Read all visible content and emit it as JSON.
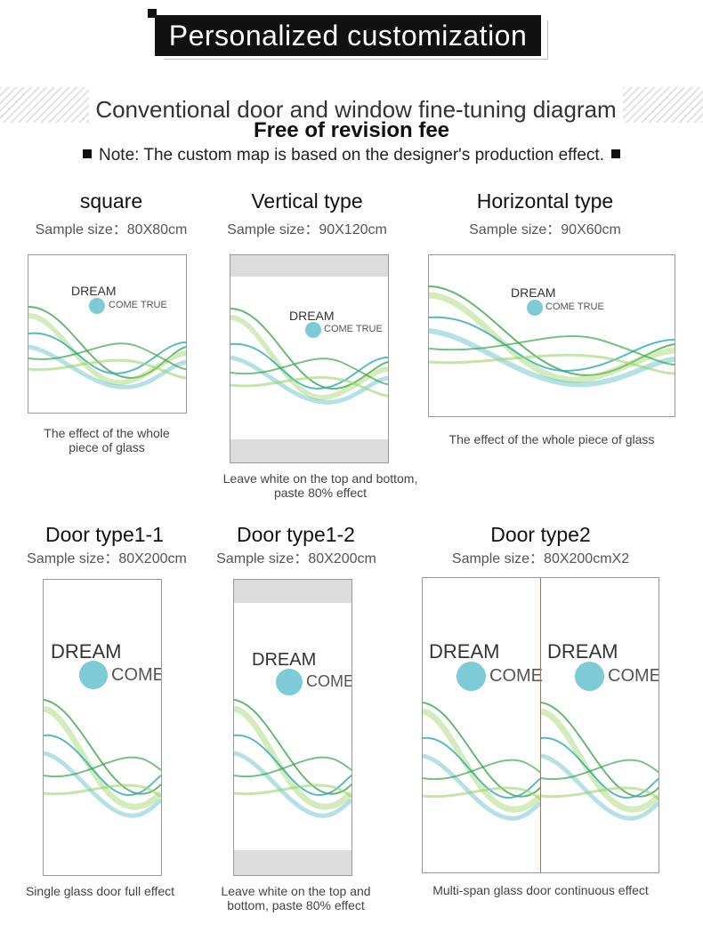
{
  "header": {
    "title": "Personalized customization",
    "subtitle": "Conventional door and window fine-tuning diagram",
    "free": "Free of revision fee",
    "note": "Note: The custom map is based on the designer's production effect."
  },
  "artwork": {
    "dream": "DREAM",
    "come_true": "COME TRUE",
    "come": "COME"
  },
  "products": [
    {
      "title": "square",
      "size": "Sample size：80X80cm",
      "caption1": "The effect of the whole",
      "caption2": "piece of glass"
    },
    {
      "title": "Vertical type",
      "size": "Sample size：90X120cm",
      "caption1": "Leave white on the top and bottom,",
      "caption2": "paste 80% effect"
    },
    {
      "title": "Horizontal type",
      "size": "Sample size：90X60cm",
      "caption1": "The effect of the whole piece of glass",
      "caption2": ""
    },
    {
      "title": "Door type1-1",
      "size": "Sample size：80X200cm",
      "caption1": "Single glass door full effect",
      "caption2": ""
    },
    {
      "title": "Door type1-2",
      "size": "Sample size：80X200cm",
      "caption1": "Leave white on the top and",
      "caption2": "bottom, paste 80% effect"
    },
    {
      "title": "Door type2",
      "size": "Sample size：80X200cmX2",
      "caption1": "Multi-span glass door continuous effect",
      "caption2": ""
    }
  ],
  "colors": {
    "green": "#3aa64a",
    "light_green": "#9fd36a",
    "teal": "#2aa8b8",
    "dot": "#7ccbd6",
    "seam": "#c26a3a"
  }
}
